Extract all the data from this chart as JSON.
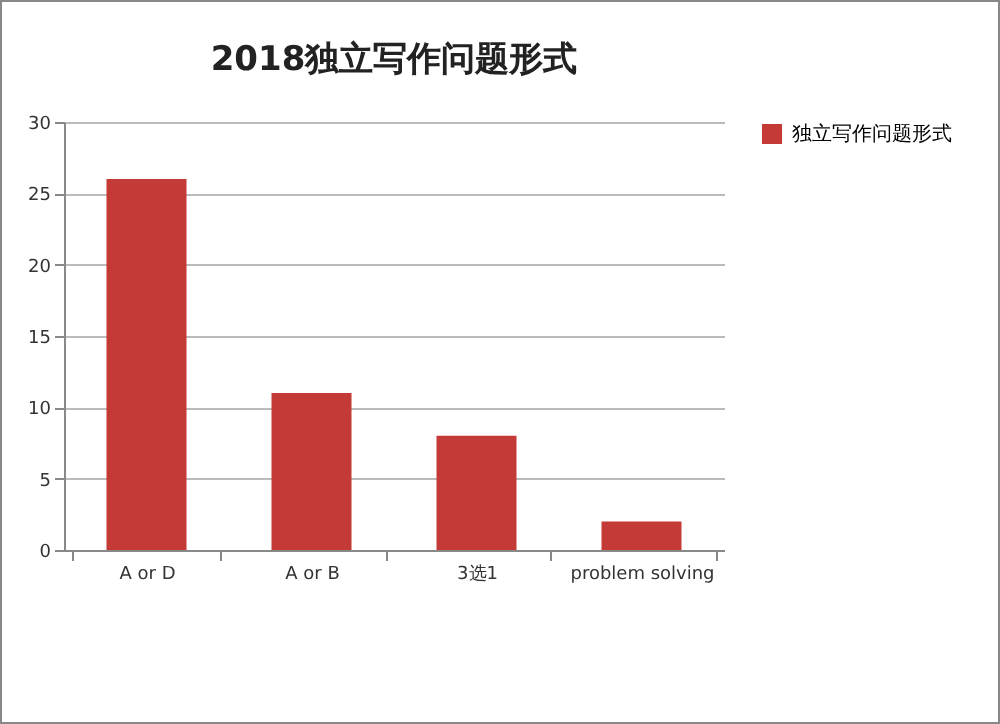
{
  "chart_data": {
    "type": "bar",
    "title": "2018独立写作问题形式",
    "categories": [
      "A or D",
      "A or B",
      "3选1",
      "problem solving"
    ],
    "series": [
      {
        "name": "独立写作问题形式",
        "color": "#c43a36",
        "values": [
          26,
          11,
          8,
          2
        ]
      }
    ],
    "ylim": [
      0,
      30
    ],
    "yticks": [
      0,
      5,
      10,
      15,
      20,
      25,
      30
    ],
    "grid": "y",
    "legend": "right"
  }
}
